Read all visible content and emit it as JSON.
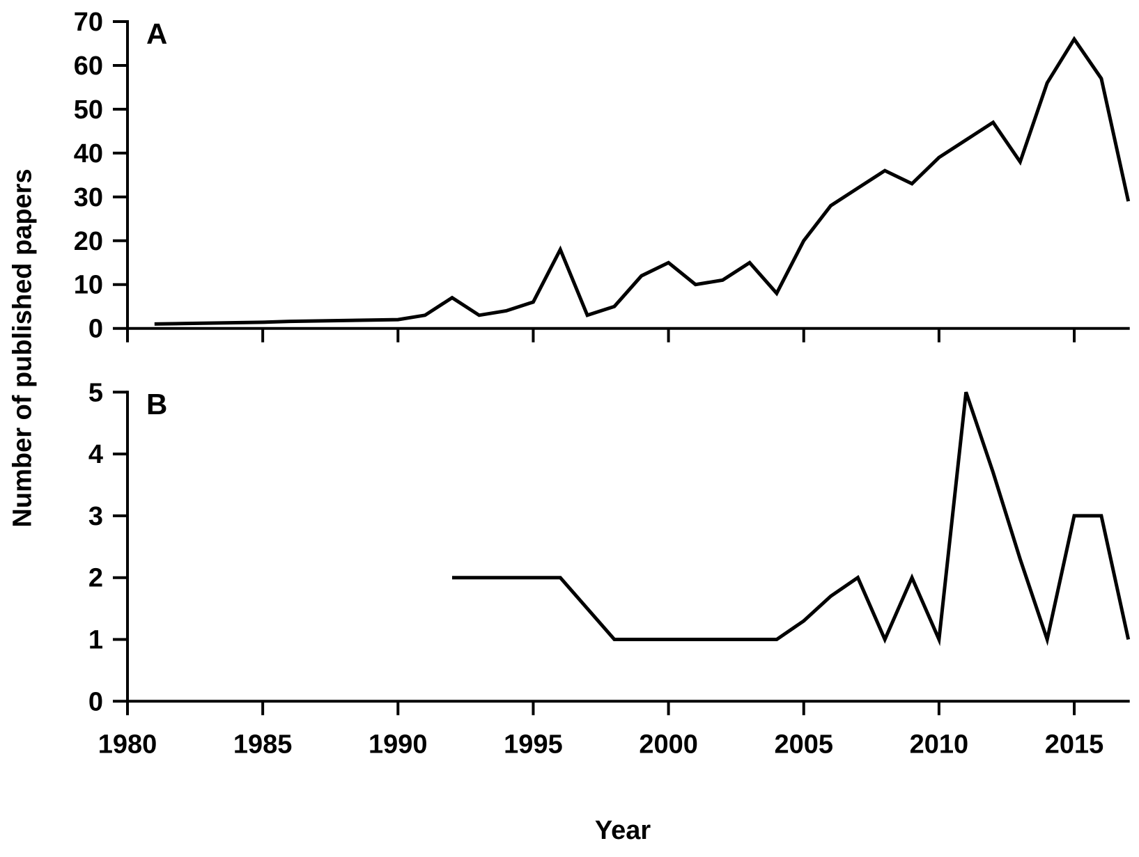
{
  "figure": {
    "y_axis_title": "Number of published papers",
    "x_axis_title": "Year",
    "background": "#ffffff",
    "line_color": "#000000"
  },
  "chart_data": [
    {
      "type": "line",
      "panel_label": "A",
      "xlabel": "Year",
      "ylabel": "Number of published papers",
      "xlim": [
        1980,
        2017
      ],
      "ylim": [
        0,
        70
      ],
      "xticks": [
        1980,
        1985,
        1990,
        1995,
        2000,
        2005,
        2010,
        2015
      ],
      "yticks": [
        0,
        10,
        20,
        30,
        40,
        50,
        60,
        70
      ],
      "show_x_tick_labels": false,
      "grid": false,
      "legend": "none",
      "x": [
        1981,
        1982,
        1983,
        1984,
        1985,
        1986,
        1987,
        1988,
        1989,
        1990,
        1991,
        1992,
        1993,
        1994,
        1995,
        1996,
        1997,
        1998,
        1999,
        2000,
        2001,
        2002,
        2003,
        2004,
        2005,
        2006,
        2007,
        2008,
        2009,
        2010,
        2011,
        2012,
        2013,
        2014,
        2015,
        2016,
        2017
      ],
      "values": [
        1,
        1.1,
        1.2,
        1.3,
        1.4,
        1.6,
        1.7,
        1.8,
        1.9,
        2,
        3,
        7,
        3,
        4,
        6,
        18,
        3,
        5,
        12,
        15,
        10,
        11,
        15,
        8,
        20,
        28,
        32,
        36,
        33,
        39,
        43,
        47,
        38,
        56,
        66,
        57,
        29
      ]
    },
    {
      "type": "line",
      "panel_label": "B",
      "xlabel": "Year",
      "ylabel": "Number of published papers",
      "xlim": [
        1980,
        2017
      ],
      "ylim": [
        0,
        5
      ],
      "xticks": [
        1980,
        1985,
        1990,
        1995,
        2000,
        2005,
        2010,
        2015
      ],
      "yticks": [
        0,
        1,
        2,
        3,
        4,
        5
      ],
      "show_x_tick_labels": true,
      "grid": false,
      "legend": "none",
      "x": [
        1992,
        1993,
        1994,
        1995,
        1996,
        1997,
        1998,
        1999,
        2000,
        2001,
        2002,
        2003,
        2004,
        2005,
        2006,
        2007,
        2008,
        2009,
        2010,
        2011,
        2012,
        2013,
        2014,
        2015,
        2016,
        2017
      ],
      "values": [
        2,
        2,
        2,
        2,
        2,
        1.5,
        1,
        1,
        1,
        1,
        1,
        1,
        1,
        1.3,
        1.7,
        2,
        1,
        2,
        1,
        5,
        3.7,
        2.3,
        1,
        3,
        3,
        1
      ]
    }
  ]
}
